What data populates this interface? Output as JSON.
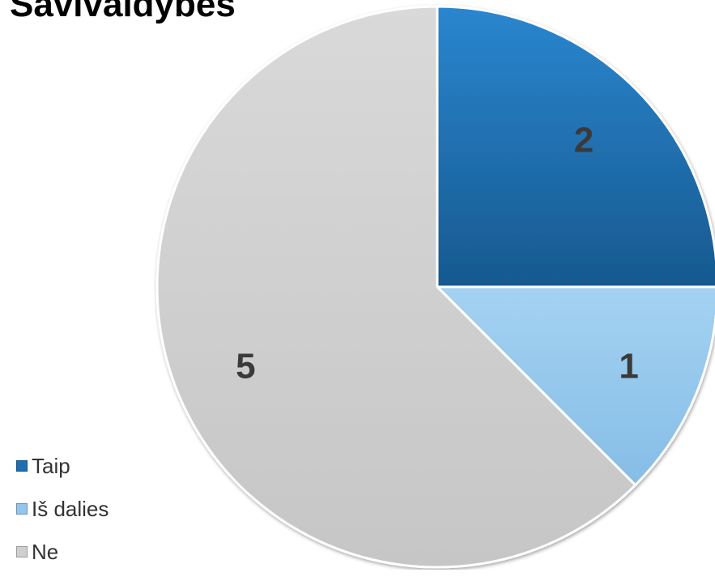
{
  "chart_data": {
    "type": "pie",
    "title": "Savivaldybės",
    "categories": [
      "Taip",
      "Iš dalies",
      "Ne"
    ],
    "values": [
      2,
      1,
      5
    ],
    "data_labels": [
      "2",
      "1",
      "5"
    ],
    "colors": [
      "#1f6fb0",
      "#93c6ea",
      "#cfcfcf"
    ],
    "legend_position": "bottom-left"
  }
}
